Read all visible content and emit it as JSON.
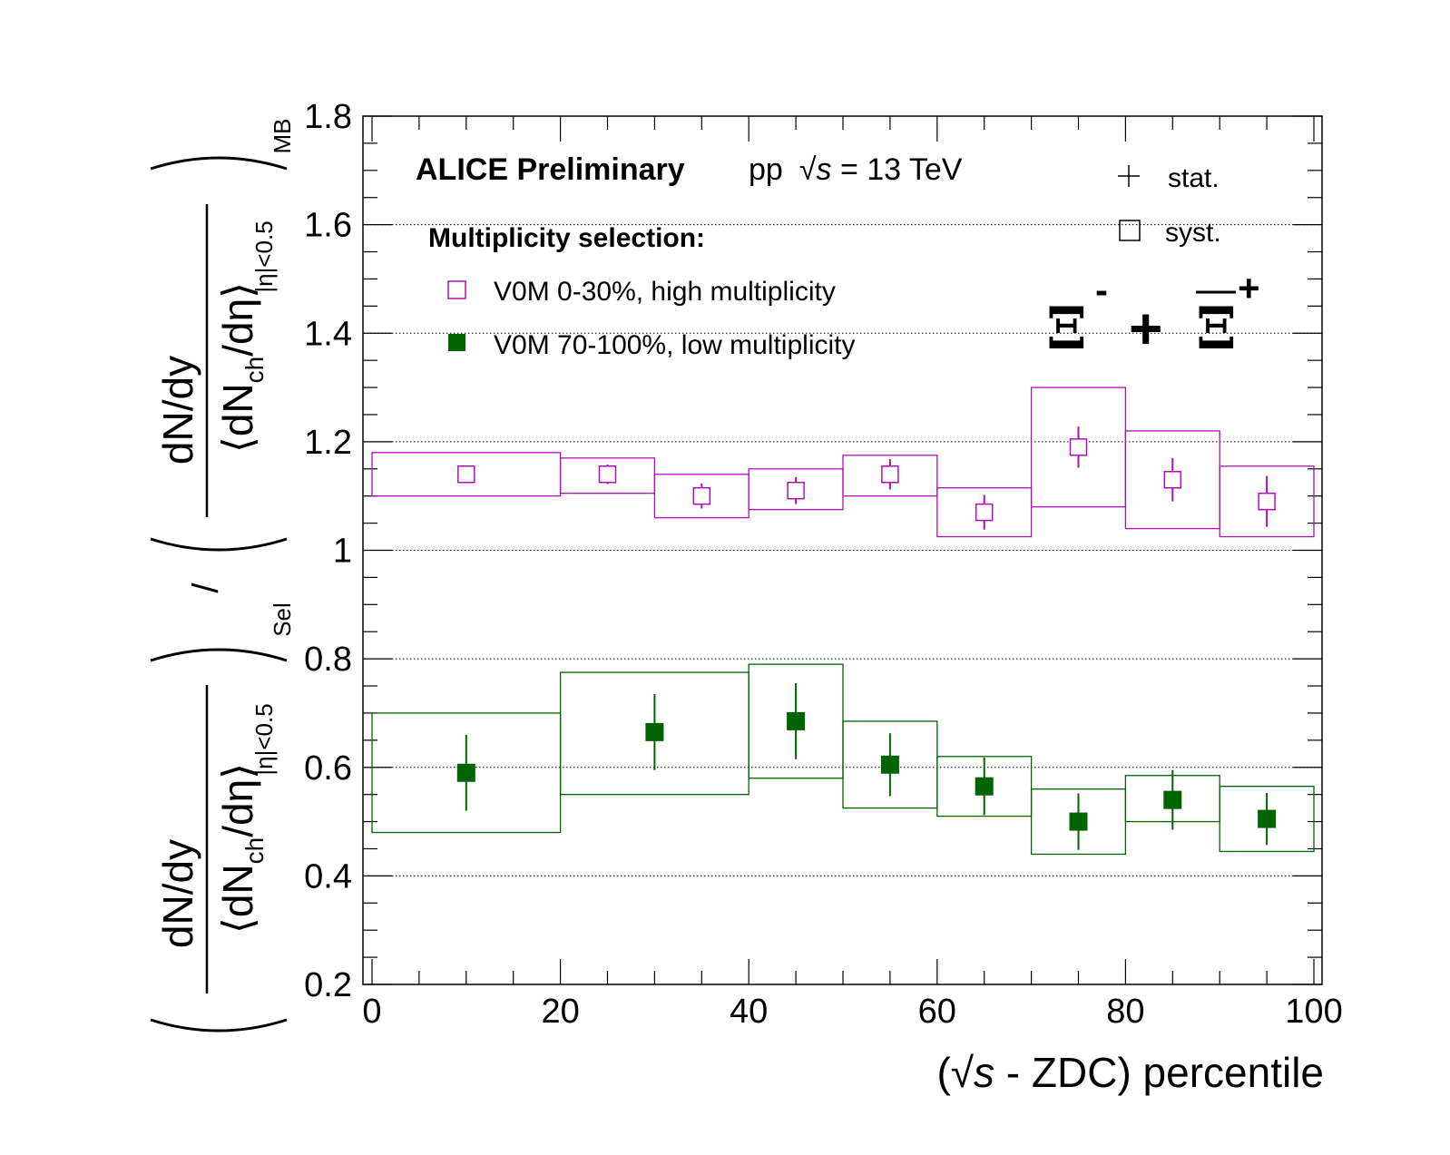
{
  "chart_data": {
    "type": "scatter",
    "x_title_prefix": "(",
    "x_title_sqrt": "√",
    "x_title_s": "s",
    "x_title_suffix": " - ZDC) percentile",
    "xlim": [
      0,
      100
    ],
    "ylim": [
      0.2,
      1.8
    ],
    "x_ticks": [
      "0",
      "20",
      "40",
      "60",
      "80",
      "100"
    ],
    "y_ticks": [
      "0.2",
      "0.4",
      "0.6",
      "0.8",
      "1",
      "1.2",
      "1.4",
      "1.6",
      "1.8"
    ],
    "y_gridlines": [
      0.4,
      0.6,
      0.8,
      1.0,
      1.2,
      1.4,
      1.6
    ],
    "y_title": {
      "numerator": "dN/dy",
      "den_d": "dN",
      "den_ch": "ch",
      "den_eta": "/dη",
      "lbrack": "⟨",
      "rbrack": "⟩",
      "eta_cut": "|η|<0.5",
      "sub_sel": "Sel",
      "sub_mb": "MB",
      "slash": "/"
    },
    "header": {
      "experiment": "ALICE Preliminary",
      "system": "pp",
      "sqrt": "√",
      "s": "s",
      "energy": " = 13 TeV"
    },
    "legend_stat": "stat.",
    "legend_syst": "syst.",
    "legend_title": "Multiplicity selection:",
    "particle": {
      "xi": "Ξ",
      "minus": "-",
      "plus_sign": "+",
      "plus": "+"
    },
    "colors": {
      "high": "#b00fb8",
      "low": "#006400",
      "grid": "#000000"
    },
    "series": [
      {
        "name": "V0M 0-30%, high multiplicity",
        "marker": "open-square",
        "bins": [
          [
            0,
            20
          ],
          [
            20,
            30
          ],
          [
            30,
            40
          ],
          [
            40,
            50
          ],
          [
            50,
            60
          ],
          [
            60,
            70
          ],
          [
            70,
            80
          ],
          [
            80,
            90
          ],
          [
            90,
            100
          ]
        ],
        "x": [
          10,
          25,
          35,
          45,
          55,
          65,
          75,
          85,
          95
        ],
        "y": [
          1.14,
          1.14,
          1.1,
          1.11,
          1.14,
          1.07,
          1.19,
          1.13,
          1.09
        ],
        "stat_err": [
          0.005,
          0.018,
          0.023,
          0.025,
          0.028,
          0.032,
          0.038,
          0.04,
          0.047
        ],
        "syst_low": [
          1.1,
          1.105,
          1.06,
          1.075,
          1.1,
          1.025,
          1.08,
          1.04,
          1.025
        ],
        "syst_high": [
          1.18,
          1.17,
          1.14,
          1.15,
          1.175,
          1.115,
          1.3,
          1.22,
          1.155
        ]
      },
      {
        "name": "V0M 70-100%, low multiplicity",
        "marker": "filled-square",
        "bins": [
          [
            0,
            20
          ],
          [
            20,
            40
          ],
          [
            40,
            50
          ],
          [
            50,
            60
          ],
          [
            60,
            70
          ],
          [
            70,
            80
          ],
          [
            80,
            90
          ],
          [
            90,
            100
          ]
        ],
        "x": [
          10,
          30,
          45,
          55,
          65,
          75,
          85,
          95
        ],
        "y": [
          0.59,
          0.665,
          0.685,
          0.605,
          0.565,
          0.5,
          0.54,
          0.505
        ],
        "stat_err": [
          0.07,
          0.07,
          0.07,
          0.058,
          0.053,
          0.052,
          0.055,
          0.048
        ],
        "syst_low": [
          0.48,
          0.55,
          0.58,
          0.525,
          0.51,
          0.44,
          0.5,
          0.445
        ],
        "syst_high": [
          0.7,
          0.775,
          0.79,
          0.685,
          0.62,
          0.56,
          0.585,
          0.565
        ]
      }
    ]
  }
}
